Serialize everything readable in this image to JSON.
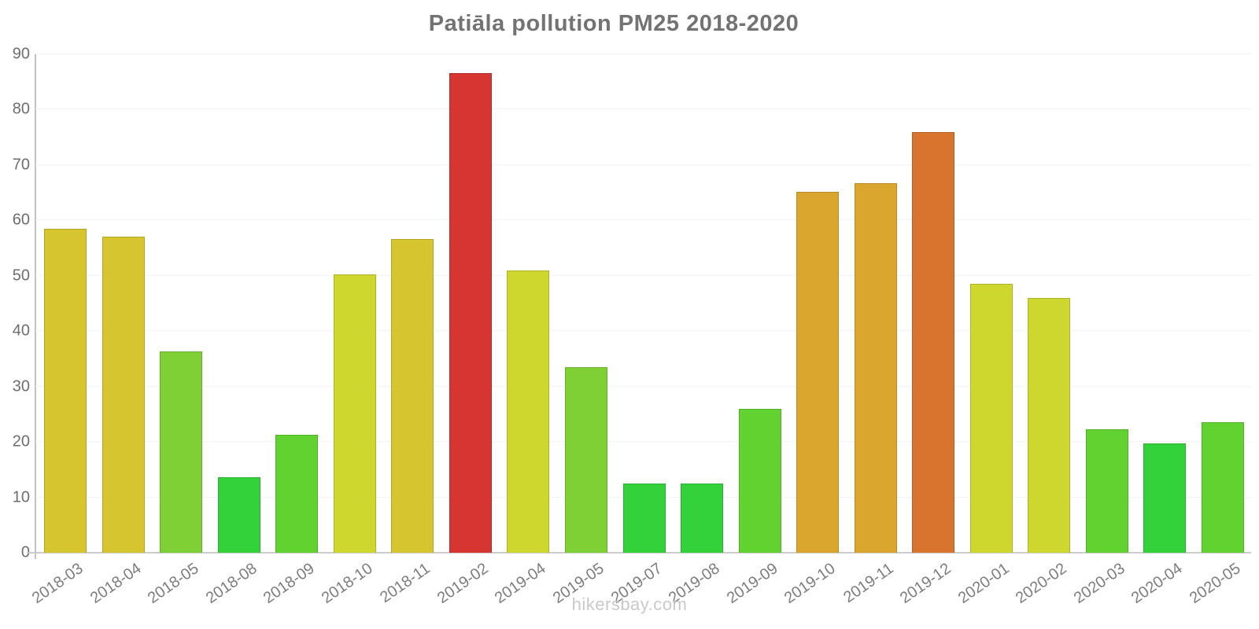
{
  "title": "Patiāla pollution PM25 2018-2020",
  "footer": "hikersbay.com",
  "chart_data": {
    "type": "bar",
    "title": "Patiāla pollution PM25 2018-2020",
    "xlabel": "",
    "ylabel": "",
    "ylim": [
      0,
      90
    ],
    "yticks": [
      0,
      10,
      20,
      30,
      40,
      50,
      60,
      70,
      80,
      90
    ],
    "grid": "horizontal, very light, on",
    "legend": "none",
    "categories": [
      "2018-03",
      "2018-04",
      "2018-05",
      "2018-08",
      "2018-09",
      "2018-10",
      "2018-11",
      "2019-02",
      "2019-04",
      "2019-05",
      "2019-07",
      "2019-08",
      "2019-09",
      "2019-10",
      "2019-11",
      "2019-12",
      "2020-01",
      "2020-02",
      "2020-03",
      "2020-04",
      "2020-05"
    ],
    "values": [
      58.5,
      57,
      36.3,
      13.7,
      21.3,
      50.3,
      56.6,
      86.6,
      51,
      33.5,
      12.5,
      12.5,
      26,
      65.2,
      66.7,
      76,
      48.6,
      46,
      22.3,
      19.7,
      23.6
    ],
    "bar_colors": [
      "#d7c52f",
      "#d7c52f",
      "#7ed034",
      "#33d23a",
      "#62d230",
      "#cdd72d",
      "#d7c52f",
      "#d63531",
      "#cdd72d",
      "#7ed034",
      "#33d23a",
      "#33d23a",
      "#62d230",
      "#dba62e",
      "#dba62e",
      "#d8742e",
      "#cdd72d",
      "#cdd72d",
      "#62d230",
      "#33d23a",
      "#62d230"
    ]
  },
  "colors": {
    "title_text": "#737373",
    "y_tick_text": "#6e6e6e",
    "x_tick_text": "#7d7d7d",
    "grid_line": "#f3f3f3",
    "y_axis_line": "#c2c2c2",
    "x_axis_line": "#cccccc",
    "footer_text": "#c9c9c9",
    "background": "#ffffff"
  }
}
